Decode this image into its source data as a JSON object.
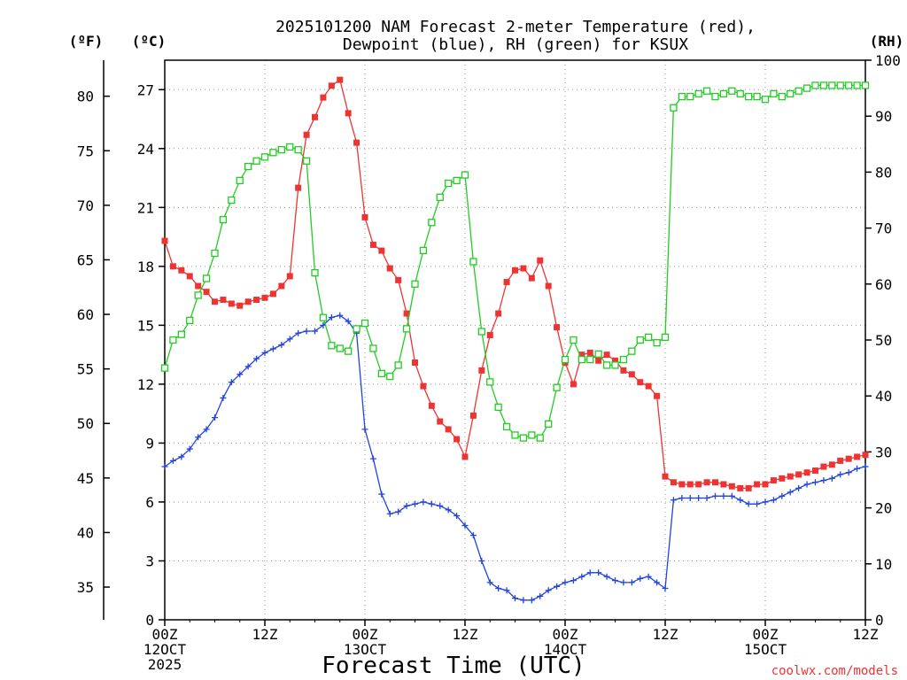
{
  "chart_data": {
    "type": "line",
    "title_line1": "2025101200 NAM Forecast 2-meter Temperature (red),",
    "title_line2": "Dewpoint (blue), RH (green) for KSUX",
    "units_f": "(ºF)",
    "units_c": "(ºC)",
    "units_rh": "(RH)",
    "xlabel": "Forecast Time (UTC)",
    "credit": "coolwx.com/models",
    "grid": true,
    "x_range_hours": [
      0,
      84
    ],
    "ylim_c": [
      0,
      28.5
    ],
    "ylim_rh": [
      0,
      100
    ],
    "left_ticks_c": [
      "0",
      "3",
      "6",
      "9",
      "12",
      "15",
      "18",
      "21",
      "24",
      "27"
    ],
    "left_ticks_f": [
      "35",
      "40",
      "45",
      "50",
      "55",
      "60",
      "65",
      "70",
      "75",
      "80"
    ],
    "right_ticks_rh": [
      "0",
      "10",
      "20",
      "30",
      "40",
      "50",
      "60",
      "70",
      "80",
      "90",
      "100"
    ],
    "x_ticks": [
      {
        "h": 0,
        "line1": "00Z",
        "line2": "12OCT",
        "line3": "2025"
      },
      {
        "h": 12,
        "line1": "12Z",
        "line2": "",
        "line3": ""
      },
      {
        "h": 24,
        "line1": "00Z",
        "line2": "13OCT",
        "line3": ""
      },
      {
        "h": 36,
        "line1": "12Z",
        "line2": "",
        "line3": ""
      },
      {
        "h": 48,
        "line1": "00Z",
        "line2": "14OCT",
        "line3": ""
      },
      {
        "h": 60,
        "line1": "12Z",
        "line2": "",
        "line3": ""
      },
      {
        "h": 72,
        "line1": "00Z",
        "line2": "15OCT",
        "line3": ""
      },
      {
        "h": 84,
        "line1": "12Z",
        "line2": "",
        "line3": ""
      }
    ],
    "series": [
      {
        "color": "#ee3333",
        "marker": "filled-square",
        "unit": "C",
        "hours": [
          0,
          1,
          2,
          3,
          4,
          5,
          6,
          7,
          8,
          9,
          10,
          11,
          12,
          13,
          14,
          15,
          16,
          17,
          18,
          19,
          20,
          21,
          22,
          23,
          24,
          25,
          26,
          27,
          28,
          29,
          30,
          31,
          32,
          33,
          34,
          35,
          36,
          37,
          38,
          39,
          40,
          41,
          42,
          43,
          44,
          45,
          46,
          47,
          48,
          49,
          50,
          51,
          52,
          53,
          54,
          55,
          56,
          57,
          58,
          59,
          60,
          61,
          62,
          63,
          64,
          65,
          66,
          67,
          68,
          69,
          70,
          71,
          72,
          73,
          74,
          75,
          76,
          77,
          78,
          79,
          80,
          81,
          82,
          83,
          84
        ],
        "values": [
          19.3,
          18.0,
          17.8,
          17.5,
          17.0,
          16.7,
          16.2,
          16.3,
          16.1,
          16.0,
          16.2,
          16.3,
          16.4,
          16.6,
          17.0,
          17.5,
          22.0,
          24.7,
          25.6,
          26.6,
          27.2,
          27.5,
          25.8,
          24.3,
          20.5,
          19.1,
          18.8,
          17.9,
          17.3,
          15.6,
          13.1,
          11.9,
          10.9,
          10.1,
          9.7,
          9.2,
          8.3,
          10.4,
          12.7,
          14.5,
          15.6,
          17.2,
          17.8,
          17.9,
          17.4,
          18.3,
          17.0,
          14.9,
          13.1,
          12.0,
          13.5,
          13.6,
          13.2,
          13.5,
          13.2,
          12.7,
          12.5,
          12.1,
          11.9,
          11.4,
          7.3,
          7.0,
          6.9,
          6.9,
          6.9,
          7.0,
          7.0,
          6.9,
          6.8,
          6.7,
          6.7,
          6.9,
          6.9,
          7.1,
          7.2,
          7.3,
          7.4,
          7.5,
          7.6,
          7.8,
          7.9,
          8.1,
          8.2,
          8.3,
          8.4
        ],
        "values_source_y": "read from chart"
      },
      {
        "color": "#2244dd",
        "marker": "plus",
        "unit": "C",
        "hours": [
          0,
          1,
          2,
          3,
          4,
          5,
          6,
          7,
          8,
          9,
          10,
          11,
          12,
          13,
          14,
          15,
          16,
          17,
          18,
          19,
          20,
          21,
          22,
          23,
          24,
          25,
          26,
          27,
          28,
          29,
          30,
          31,
          32,
          33,
          34,
          35,
          36,
          37,
          38,
          39,
          40,
          41,
          42,
          43,
          44,
          45,
          46,
          47,
          48,
          49,
          50,
          51,
          52,
          53,
          54,
          55,
          56,
          57,
          58,
          59,
          60,
          61,
          62,
          63,
          64,
          65,
          66,
          67,
          68,
          69,
          70,
          71,
          72,
          73,
          74,
          75,
          76,
          77,
          78,
          79,
          80,
          81,
          82,
          83,
          84
        ],
        "values": [
          7.8,
          8.1,
          8.3,
          8.7,
          9.3,
          9.7,
          10.3,
          11.3,
          12.1,
          12.5,
          12.9,
          13.3,
          13.6,
          13.8,
          14.0,
          14.3,
          14.6,
          14.7,
          14.7,
          15.0,
          15.4,
          15.5,
          15.2,
          14.6,
          9.7,
          8.2,
          6.4,
          5.4,
          5.5,
          5.8,
          5.9,
          6.0,
          5.9,
          5.8,
          5.6,
          5.3,
          4.8,
          4.3,
          3.0,
          1.9,
          1.6,
          1.5,
          1.1,
          1.0,
          1.0,
          1.2,
          1.5,
          1.7,
          1.9,
          2.0,
          2.2,
          2.4,
          2.4,
          2.2,
          2.0,
          1.9,
          1.9,
          2.1,
          2.2,
          1.9,
          1.6,
          6.1,
          6.2,
          6.2,
          6.2,
          6.2,
          6.3,
          6.3,
          6.3,
          6.1,
          5.9,
          5.9,
          6.0,
          6.1,
          6.3,
          6.5,
          6.7,
          6.9,
          7.0,
          7.1,
          7.2,
          7.4,
          7.5,
          7.7,
          7.8
        ],
        "values_source_y": "read from chart"
      },
      {
        "color": "#22cc22",
        "marker": "open-square",
        "unit": "RH",
        "hours": [
          0,
          1,
          2,
          3,
          4,
          5,
          6,
          7,
          8,
          9,
          10,
          11,
          12,
          13,
          14,
          15,
          16,
          17,
          18,
          19,
          20,
          21,
          22,
          23,
          24,
          25,
          26,
          27,
          28,
          29,
          30,
          31,
          32,
          33,
          34,
          35,
          36,
          37,
          38,
          39,
          40,
          41,
          42,
          43,
          44,
          45,
          46,
          47,
          48,
          49,
          50,
          51,
          52,
          53,
          54,
          55,
          56,
          57,
          58,
          59,
          60,
          61,
          62,
          63,
          64,
          65,
          66,
          67,
          68,
          69,
          70,
          71,
          72,
          73,
          74,
          75,
          76,
          77,
          78,
          79,
          80,
          81,
          82,
          83,
          84
        ],
        "values": [
          45.0,
          50.0,
          51.0,
          53.5,
          58.0,
          61.0,
          65.5,
          71.5,
          75.0,
          78.5,
          81.0,
          82.0,
          82.7,
          83.5,
          84.0,
          84.5,
          84.0,
          82.0,
          62.0,
          54.0,
          49.0,
          48.5,
          48.0,
          52.0,
          53.0,
          48.5,
          44.0,
          43.5,
          45.5,
          52.0,
          60.0,
          66.0,
          71.0,
          75.5,
          78.0,
          78.5,
          79.5,
          64.0,
          51.5,
          42.5,
          38.0,
          34.5,
          33.0,
          32.5,
          33.0,
          32.5,
          35.0,
          41.5,
          46.5,
          50.0,
          46.5,
          46.5,
          47.5,
          45.5,
          45.5,
          46.5,
          48.0,
          50.0,
          50.5,
          49.5,
          50.5,
          91.5,
          93.5,
          93.5,
          94.0,
          94.5,
          93.5,
          94.0,
          94.5,
          94.0,
          93.5,
          93.5,
          93.0,
          94.0,
          93.5,
          94.0,
          94.5,
          95.0,
          95.5,
          95.5,
          95.5,
          95.5,
          95.5,
          95.5,
          95.5
        ],
        "values_source_y": "read from chart"
      }
    ]
  }
}
